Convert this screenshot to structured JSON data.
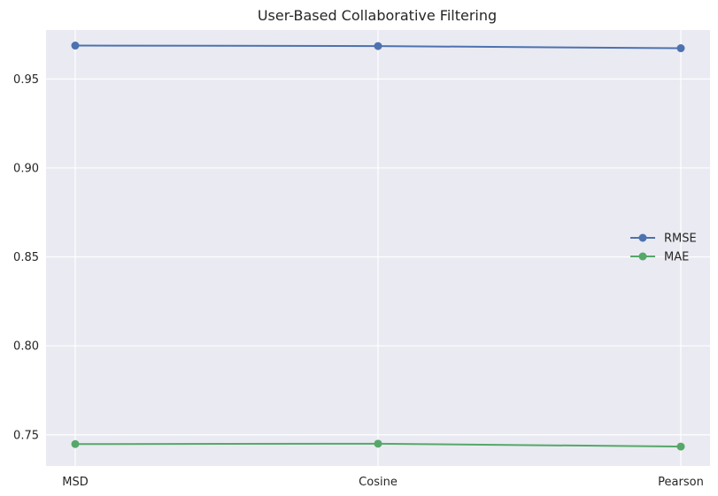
{
  "chart_data": {
    "type": "line",
    "title": "User-Based Collaborative Filtering",
    "xlabel": "",
    "ylabel": "",
    "categories": [
      "MSD",
      "Cosine",
      "Pearson"
    ],
    "series": [
      {
        "name": "RMSE",
        "values": [
          0.9688,
          0.9685,
          0.9673
        ],
        "color": "#4c72b0"
      },
      {
        "name": "MAE",
        "values": [
          0.7448,
          0.745,
          0.7434
        ],
        "color": "#55a868"
      }
    ],
    "ylim": [
      0.7325,
      0.9775
    ],
    "yticks": [
      0.75,
      0.8,
      0.85,
      0.9,
      0.95
    ],
    "ytick_labels": [
      "0.75",
      "0.80",
      "0.85",
      "0.90",
      "0.95"
    ],
    "grid": true,
    "legend_placement": "center-right",
    "background": "#eaeaf2"
  }
}
